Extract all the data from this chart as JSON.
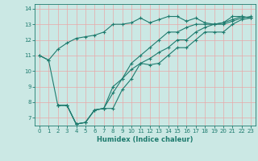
{
  "xlabel": "Humidex (Indice chaleur)",
  "bg_color": "#cbe8e4",
  "line_color": "#1e7b6e",
  "grid_color": "#e8a8a8",
  "xlim": [
    -0.5,
    23.5
  ],
  "ylim": [
    6.5,
    14.3
  ],
  "xticks": [
    0,
    1,
    2,
    3,
    4,
    5,
    6,
    7,
    8,
    9,
    10,
    11,
    12,
    13,
    14,
    15,
    16,
    17,
    18,
    19,
    20,
    21,
    22,
    23
  ],
  "yticks": [
    7,
    8,
    9,
    10,
    11,
    12,
    13,
    14
  ],
  "line1_x": [
    0,
    1,
    2,
    3,
    4,
    5,
    6,
    7,
    8,
    9,
    10,
    11,
    12,
    13,
    14,
    15,
    16,
    17,
    18,
    19,
    20,
    21,
    22,
    23
  ],
  "line1_y": [
    11.0,
    10.7,
    11.4,
    11.8,
    12.1,
    12.2,
    12.3,
    12.5,
    13.0,
    13.0,
    13.1,
    13.4,
    13.1,
    13.3,
    13.5,
    13.5,
    13.2,
    13.4,
    13.1,
    13.0,
    13.1,
    13.5,
    13.5,
    13.4
  ],
  "line2_x": [
    0,
    1,
    2,
    3,
    4,
    5,
    6,
    7,
    8,
    9,
    10,
    11,
    12,
    13,
    14,
    15,
    16,
    17,
    18,
    19,
    20,
    21,
    22,
    23
  ],
  "line2_y": [
    11.0,
    10.7,
    7.8,
    7.8,
    6.6,
    6.7,
    7.5,
    7.6,
    9.0,
    9.5,
    10.5,
    11.0,
    11.5,
    12.0,
    12.5,
    12.5,
    12.8,
    13.0,
    13.0,
    13.0,
    13.1,
    13.3,
    13.5,
    13.4
  ],
  "line3_x": [
    2,
    3,
    4,
    5,
    6,
    7,
    8,
    9,
    10,
    11,
    12,
    13,
    14,
    15,
    16,
    17,
    18,
    19,
    20,
    21,
    22,
    23
  ],
  "line3_y": [
    7.8,
    7.8,
    6.6,
    6.7,
    7.5,
    7.6,
    8.6,
    9.5,
    10.1,
    10.5,
    10.8,
    11.2,
    11.5,
    12.0,
    12.0,
    12.5,
    12.8,
    13.0,
    13.0,
    13.2,
    13.4,
    13.5
  ],
  "line4_x": [
    2,
    3,
    4,
    5,
    6,
    7,
    8,
    9,
    10,
    11,
    12,
    13,
    14,
    15,
    16,
    17,
    18,
    19,
    20,
    21,
    22,
    23
  ],
  "line4_y": [
    7.8,
    7.8,
    6.6,
    6.7,
    7.5,
    7.6,
    7.6,
    8.8,
    9.5,
    10.5,
    10.4,
    10.5,
    11.0,
    11.5,
    11.5,
    12.0,
    12.5,
    12.5,
    12.5,
    13.0,
    13.3,
    13.4
  ]
}
